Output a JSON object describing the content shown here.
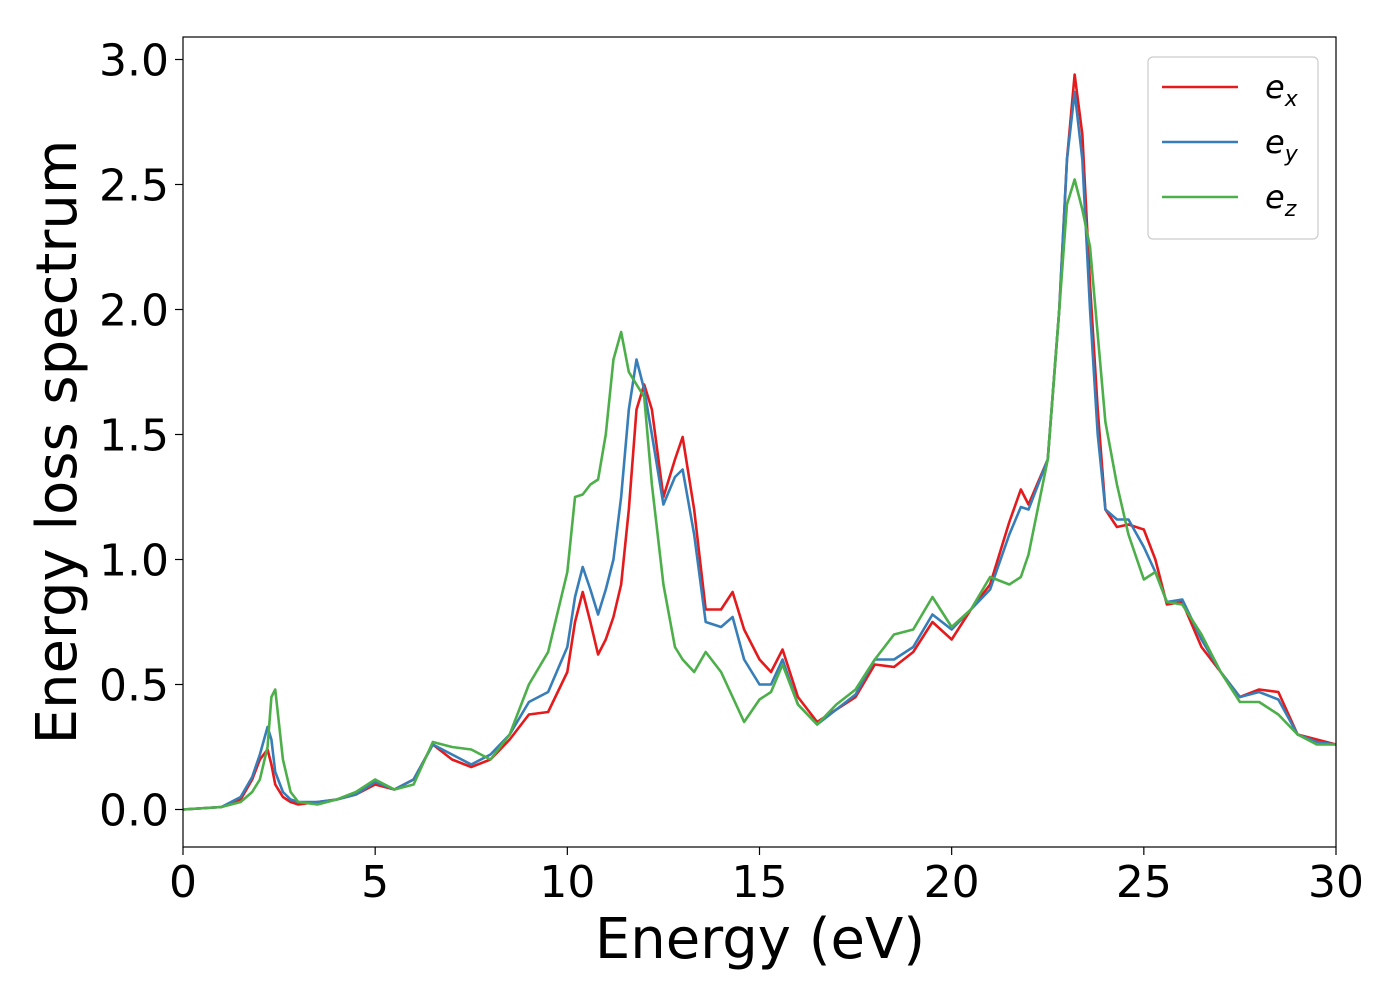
{
  "chart_data": {
    "type": "line",
    "xlabel": "Energy (eV)",
    "ylabel": "Energy loss spectrum",
    "x": [
      0,
      1,
      1.5,
      1.8,
      2.0,
      2.2,
      2.3,
      2.4,
      2.6,
      2.8,
      3,
      3.5,
      4,
      4.5,
      5,
      5.5,
      6,
      6.5,
      7,
      7.5,
      8,
      8.5,
      9,
      9.5,
      10,
      10.2,
      10.4,
      10.6,
      10.8,
      11,
      11.2,
      11.4,
      11.6,
      11.8,
      12,
      12.2,
      12.5,
      12.8,
      13,
      13.3,
      13.6,
      14,
      14.3,
      14.6,
      15,
      15.3,
      15.6,
      16,
      16.5,
      17,
      17.5,
      18,
      18.5,
      19,
      19.5,
      20,
      20.5,
      21,
      21.5,
      21.8,
      22,
      22.5,
      22.8,
      23,
      23.2,
      23.4,
      23.6,
      23.8,
      24,
      24.3,
      24.6,
      25,
      25.3,
      25.6,
      26,
      26.5,
      27,
      27.5,
      28,
      28.5,
      29,
      29.5,
      30
    ],
    "series": [
      {
        "name": "e_x",
        "color": "#e41a1c",
        "values": [
          0,
          0.01,
          0.04,
          0.12,
          0.2,
          0.24,
          0.18,
          0.1,
          0.05,
          0.03,
          0.02,
          0.03,
          0.04,
          0.06,
          0.1,
          0.08,
          0.12,
          0.26,
          0.2,
          0.17,
          0.2,
          0.28,
          0.38,
          0.39,
          0.55,
          0.75,
          0.87,
          0.75,
          0.62,
          0.68,
          0.77,
          0.9,
          1.2,
          1.6,
          1.7,
          1.6,
          1.25,
          1.4,
          1.49,
          1.2,
          0.8,
          0.8,
          0.87,
          0.72,
          0.6,
          0.55,
          0.64,
          0.45,
          0.35,
          0.4,
          0.45,
          0.58,
          0.57,
          0.63,
          0.75,
          0.68,
          0.8,
          0.9,
          1.15,
          1.28,
          1.22,
          1.4,
          2.0,
          2.6,
          2.94,
          2.7,
          2.1,
          1.6,
          1.2,
          1.13,
          1.14,
          1.12,
          1.0,
          0.82,
          0.83,
          0.65,
          0.55,
          0.45,
          0.48,
          0.47,
          0.3,
          0.28,
          0.26
        ]
      },
      {
        "name": "e_y",
        "color": "#377eb8",
        "values": [
          0,
          0.01,
          0.05,
          0.13,
          0.22,
          0.33,
          0.28,
          0.15,
          0.07,
          0.04,
          0.03,
          0.03,
          0.04,
          0.06,
          0.11,
          0.08,
          0.12,
          0.26,
          0.22,
          0.18,
          0.22,
          0.3,
          0.43,
          0.47,
          0.65,
          0.85,
          0.97,
          0.88,
          0.78,
          0.88,
          1.0,
          1.25,
          1.6,
          1.8,
          1.68,
          1.5,
          1.22,
          1.33,
          1.36,
          1.1,
          0.75,
          0.73,
          0.77,
          0.6,
          0.5,
          0.5,
          0.6,
          0.42,
          0.34,
          0.4,
          0.46,
          0.6,
          0.6,
          0.65,
          0.78,
          0.72,
          0.8,
          0.88,
          1.1,
          1.21,
          1.2,
          1.4,
          2.0,
          2.6,
          2.87,
          2.6,
          2.0,
          1.5,
          1.2,
          1.16,
          1.16,
          1.05,
          0.95,
          0.83,
          0.84,
          0.68,
          0.55,
          0.45,
          0.47,
          0.44,
          0.3,
          0.27,
          0.26
        ]
      },
      {
        "name": "e_z",
        "color": "#4daf4a",
        "values": [
          0,
          0.01,
          0.03,
          0.07,
          0.12,
          0.25,
          0.45,
          0.48,
          0.2,
          0.07,
          0.03,
          0.02,
          0.04,
          0.07,
          0.12,
          0.08,
          0.1,
          0.27,
          0.25,
          0.24,
          0.2,
          0.3,
          0.5,
          0.63,
          0.95,
          1.25,
          1.26,
          1.3,
          1.32,
          1.5,
          1.8,
          1.91,
          1.75,
          1.7,
          1.65,
          1.3,
          0.9,
          0.65,
          0.6,
          0.55,
          0.63,
          0.55,
          0.45,
          0.35,
          0.44,
          0.47,
          0.58,
          0.42,
          0.34,
          0.42,
          0.48,
          0.6,
          0.7,
          0.72,
          0.85,
          0.73,
          0.8,
          0.93,
          0.9,
          0.93,
          1.02,
          1.4,
          2.0,
          2.42,
          2.52,
          2.4,
          2.25,
          1.9,
          1.55,
          1.3,
          1.1,
          0.92,
          0.95,
          0.83,
          0.82,
          0.7,
          0.55,
          0.43,
          0.43,
          0.38,
          0.3,
          0.26,
          0.26
        ]
      }
    ],
    "xlim": [
      0,
      30
    ],
    "xticks": [
      0,
      5,
      10,
      15,
      20,
      25,
      30
    ],
    "ylim": [
      -0.15,
      3.09
    ],
    "yticks": [
      {
        "value": 0,
        "label": "0.0"
      },
      0.5,
      {
        "value": 1,
        "label": "1.0"
      },
      1.5,
      {
        "value": 2,
        "label": "2.0"
      },
      2.5,
      {
        "value": 3,
        "label": "3.0"
      }
    ],
    "legend": "upper right",
    "grid": false
  }
}
